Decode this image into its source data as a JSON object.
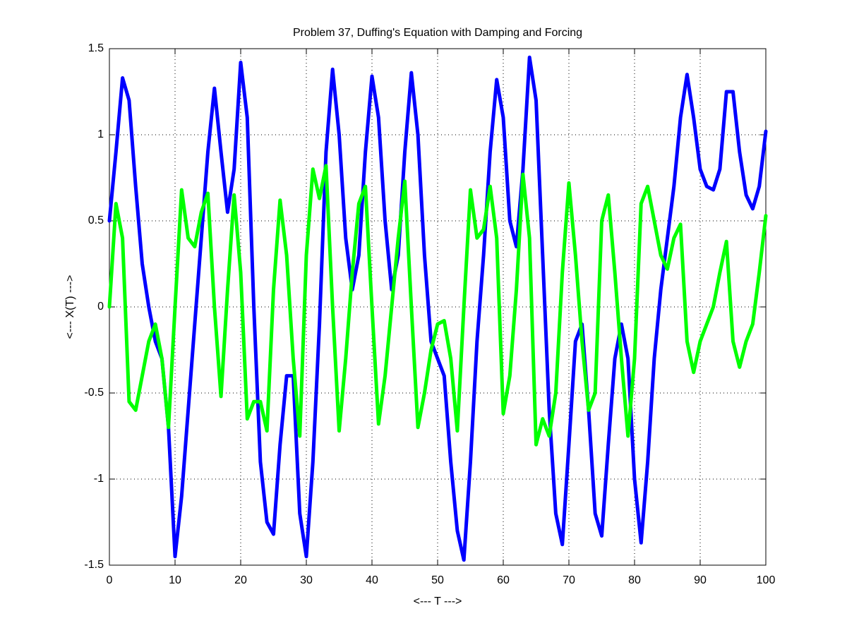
{
  "chart_data": {
    "type": "line",
    "title": "Problem 37, Duffing's Equation with Damping and Forcing",
    "xlabel": "<--- T --->",
    "ylabel": "<--- X(T) --->",
    "x": [
      0,
      1,
      2,
      3,
      4,
      5,
      6,
      7,
      8,
      9,
      10,
      11,
      12,
      13,
      14,
      15,
      16,
      17,
      18,
      19,
      20,
      21,
      22,
      23,
      24,
      25,
      26,
      27,
      28,
      29,
      30,
      31,
      32,
      33,
      34,
      35,
      36,
      37,
      38,
      39,
      40,
      41,
      42,
      43,
      44,
      45,
      46,
      47,
      48,
      49,
      50,
      51,
      52,
      53,
      54,
      55,
      56,
      57,
      58,
      59,
      60,
      61,
      62,
      63,
      64,
      65,
      66,
      67,
      68,
      69,
      70,
      71,
      72,
      73,
      74,
      75,
      76,
      77,
      78,
      79,
      80,
      81,
      82,
      83,
      84,
      85,
      86,
      87,
      88,
      89,
      90,
      91,
      92,
      93,
      94,
      95,
      96,
      97,
      98,
      99,
      100
    ],
    "series": [
      {
        "color": "#0000ff",
        "values": [
          0.5,
          0.9,
          1.33,
          1.2,
          0.7,
          0.25,
          0.0,
          -0.2,
          -0.3,
          -0.7,
          -1.45,
          -1.1,
          -0.6,
          -0.1,
          0.4,
          0.9,
          1.27,
          0.9,
          0.55,
          0.8,
          1.42,
          1.1,
          0.0,
          -0.9,
          -1.25,
          -1.32,
          -0.8,
          -0.4,
          -0.4,
          -1.2,
          -1.45,
          -0.9,
          -0.1,
          0.9,
          1.38,
          1.0,
          0.4,
          0.1,
          0.3,
          0.9,
          1.34,
          1.1,
          0.5,
          0.1,
          0.3,
          0.9,
          1.36,
          1.0,
          0.3,
          -0.2,
          -0.3,
          -0.4,
          -0.9,
          -1.3,
          -1.47,
          -0.9,
          -0.2,
          0.3,
          0.9,
          1.32,
          1.1,
          0.5,
          0.35,
          0.8,
          1.45,
          1.2,
          0.3,
          -0.6,
          -1.2,
          -1.38,
          -0.8,
          -0.2,
          -0.1,
          -0.6,
          -1.2,
          -1.33,
          -0.8,
          -0.3,
          -0.1,
          -0.3,
          -1.0,
          -1.37,
          -0.9,
          -0.3,
          0.1,
          0.4,
          0.7,
          1.1,
          1.35,
          1.1,
          0.8,
          0.7,
          0.68,
          0.8,
          1.25,
          1.25,
          0.9,
          0.65,
          0.57,
          0.7,
          1.02
        ]
      },
      {
        "color": "#00ff00",
        "values": [
          0.0,
          0.6,
          0.4,
          -0.55,
          -0.6,
          -0.4,
          -0.2,
          -0.1,
          -0.3,
          -0.7,
          0.0,
          0.68,
          0.4,
          0.35,
          0.55,
          0.66,
          0.0,
          -0.52,
          0.1,
          0.65,
          0.2,
          -0.65,
          -0.55,
          -0.55,
          -0.72,
          0.1,
          0.62,
          0.3,
          -0.3,
          -0.75,
          0.3,
          0.8,
          0.63,
          0.82,
          0.0,
          -0.72,
          -0.3,
          0.2,
          0.6,
          0.7,
          0.0,
          -0.68,
          -0.4,
          0.0,
          0.4,
          0.73,
          0.0,
          -0.7,
          -0.5,
          -0.25,
          -0.1,
          -0.08,
          -0.3,
          -0.72,
          0.0,
          0.68,
          0.4,
          0.45,
          0.7,
          0.4,
          -0.62,
          -0.4,
          0.1,
          0.77,
          0.4,
          -0.8,
          -0.65,
          -0.75,
          -0.5,
          0.2,
          0.72,
          0.3,
          -0.2,
          -0.6,
          -0.5,
          0.5,
          0.65,
          0.2,
          -0.3,
          -0.75,
          -0.3,
          0.6,
          0.7,
          0.5,
          0.3,
          0.22,
          0.4,
          0.48,
          -0.2,
          -0.38,
          -0.2,
          -0.1,
          0.0,
          0.2,
          0.38,
          -0.2,
          -0.35,
          -0.2,
          -0.1,
          0.2,
          0.53
        ]
      }
    ],
    "xlim": [
      0,
      100
    ],
    "xticks": [
      0,
      10,
      20,
      30,
      40,
      50,
      60,
      70,
      80,
      90,
      100
    ],
    "ylim": [
      -1.5,
      1.5
    ],
    "yticks": [
      -1.5,
      -1,
      -0.5,
      0,
      0.5,
      1,
      1.5
    ],
    "grid": true
  }
}
